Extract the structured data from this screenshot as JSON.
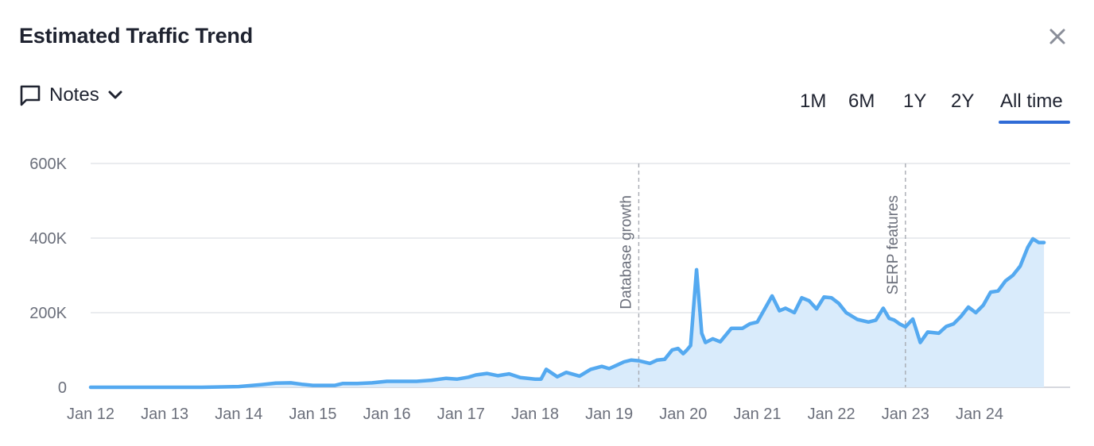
{
  "header": {
    "title": "Estimated Traffic Trend",
    "close_icon": "close-icon"
  },
  "notes": {
    "label": "Notes",
    "icon": "comment-icon",
    "chevron": "chevron-down-icon"
  },
  "ranges": {
    "items": [
      "1M",
      "6M",
      "1Y",
      "2Y",
      "All time"
    ],
    "selected": "All time",
    "accent_color": "#2f6bd6"
  },
  "chart_data": {
    "type": "area",
    "title": "",
    "xlabel": "",
    "ylabel": "",
    "ylim": [
      0,
      600000
    ],
    "yticks": [
      0,
      200000,
      400000,
      600000
    ],
    "ytick_labels": [
      "0",
      "200K",
      "400K",
      "600K"
    ],
    "xticks": [
      2012,
      2013,
      2014,
      2015,
      2016,
      2017,
      2018,
      2019,
      2020,
      2021,
      2022,
      2023,
      2024
    ],
    "xtick_labels": [
      "Jan 12",
      "Jan 13",
      "Jan 14",
      "Jan 15",
      "Jan 16",
      "Jan 17",
      "Jan 18",
      "Jan 19",
      "Jan 20",
      "Jan 21",
      "Jan 22",
      "Jan 23",
      "Jan 24"
    ],
    "xlim": [
      2011.75,
      2025.0
    ],
    "grid": true,
    "line_color": "#54a9f0",
    "fill_color": "#d9ebfb",
    "annotations": [
      {
        "x": 2019.4,
        "label": "Database growth"
      },
      {
        "x": 2023.0,
        "label": "SERP features"
      }
    ],
    "x": [
      2011.75,
      2012.0,
      2012.5,
      2013.0,
      2013.5,
      2014.0,
      2014.3,
      2014.5,
      2014.7,
      2014.85,
      2015.0,
      2015.3,
      2015.4,
      2015.6,
      2015.8,
      2016.0,
      2016.4,
      2016.6,
      2016.8,
      2016.95,
      2017.1,
      2017.2,
      2017.35,
      2017.5,
      2017.65,
      2017.8,
      2018.0,
      2018.08,
      2018.15,
      2018.3,
      2018.42,
      2018.6,
      2018.75,
      2018.9,
      2019.0,
      2019.1,
      2019.2,
      2019.3,
      2019.4,
      2019.55,
      2019.65,
      2019.75,
      2019.85,
      2019.93,
      2020.0,
      2020.05,
      2020.1,
      2020.18,
      2020.25,
      2020.3,
      2020.4,
      2020.5,
      2020.65,
      2020.8,
      2020.9,
      2021.0,
      2021.1,
      2021.2,
      2021.3,
      2021.38,
      2021.5,
      2021.6,
      2021.7,
      2021.8,
      2021.9,
      2022.0,
      2022.1,
      2022.2,
      2022.35,
      2022.5,
      2022.6,
      2022.7,
      2022.78,
      2022.85,
      2022.92,
      2023.0,
      2023.1,
      2023.2,
      2023.3,
      2023.45,
      2023.55,
      2023.65,
      2023.75,
      2023.85,
      2023.95,
      2024.05,
      2024.15,
      2024.25,
      2024.35,
      2024.45,
      2024.55,
      2024.65,
      2024.72,
      2024.8,
      2024.87
    ],
    "y": [
      0,
      0,
      0,
      0,
      0,
      2000,
      7000,
      11000,
      12000,
      8000,
      5000,
      5000,
      10000,
      10000,
      12000,
      16000,
      16000,
      19000,
      24000,
      22000,
      27000,
      33000,
      37000,
      31000,
      36000,
      26000,
      22000,
      22000,
      48000,
      28000,
      40000,
      30000,
      48000,
      56000,
      50000,
      59000,
      68000,
      73000,
      71000,
      64000,
      73000,
      75000,
      100000,
      104000,
      90000,
      100000,
      112000,
      315000,
      145000,
      120000,
      130000,
      122000,
      158000,
      158000,
      170000,
      175000,
      210000,
      245000,
      205000,
      212000,
      200000,
      240000,
      232000,
      210000,
      242000,
      240000,
      225000,
      200000,
      182000,
      175000,
      180000,
      212000,
      185000,
      180000,
      170000,
      162000,
      183000,
      120000,
      148000,
      145000,
      163000,
      170000,
      190000,
      215000,
      200000,
      220000,
      255000,
      258000,
      285000,
      300000,
      325000,
      375000,
      398000,
      388000,
      388000
    ]
  }
}
